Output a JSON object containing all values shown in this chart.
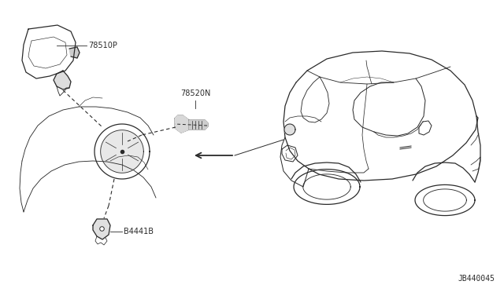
{
  "bg_color": "#ffffff",
  "line_color": "#2a2a2a",
  "label_color": "#2a2a2a",
  "diagram_id": "JB440045",
  "figsize": [
    6.4,
    3.72
  ],
  "dpi": 100,
  "font_size": 7.0,
  "label_78510P": "78510P",
  "label_78520N": "78520N",
  "label_B4441B": "B4441B"
}
